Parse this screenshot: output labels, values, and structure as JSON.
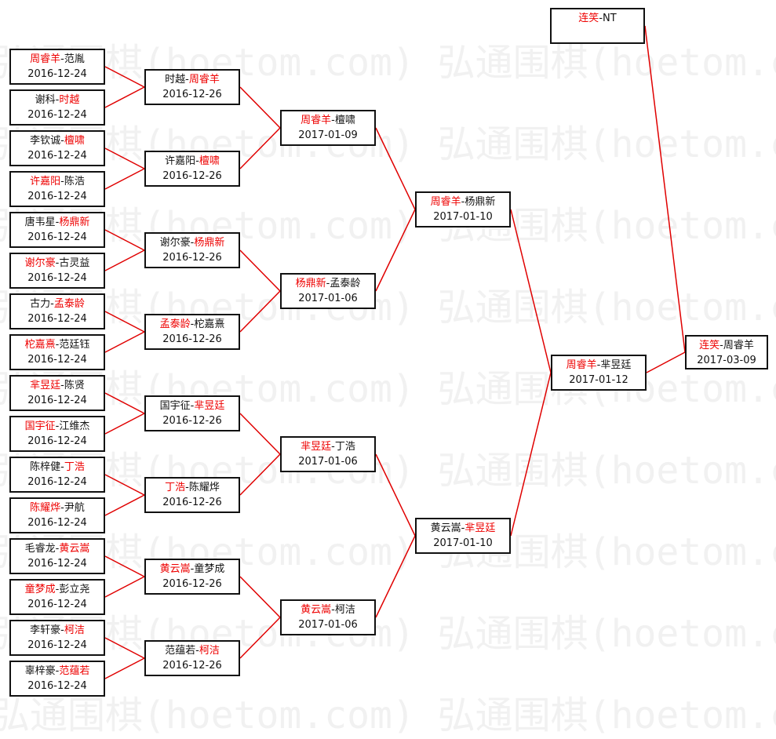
{
  "watermark": "弘通围棋(hoetom.com)",
  "colors": {
    "winner": "#e00000",
    "line": "#e00000",
    "border": "#111111"
  },
  "rounds": [
    [
      {
        "p1": "周睿羊",
        "p2": "范胤",
        "winner": 1,
        "date": "2016-12-24"
      },
      {
        "p1": "谢科",
        "p2": "时越",
        "winner": 2,
        "date": "2016-12-24"
      },
      {
        "p1": "李钦诚",
        "p2": "檀啸",
        "winner": 2,
        "date": "2016-12-24"
      },
      {
        "p1": "许嘉阳",
        "p2": "陈浩",
        "winner": 1,
        "date": "2016-12-24"
      },
      {
        "p1": "唐韦星",
        "p2": "杨鼎新",
        "winner": 2,
        "date": "2016-12-24"
      },
      {
        "p1": "谢尔豪",
        "p2": "古灵益",
        "winner": 1,
        "date": "2016-12-24"
      },
      {
        "p1": "古力",
        "p2": "孟泰龄",
        "winner": 2,
        "date": "2016-12-24"
      },
      {
        "p1": "柁嘉熹",
        "p2": "范廷钰",
        "winner": 1,
        "date": "2016-12-24"
      },
      {
        "p1": "芈昱廷",
        "p2": "陈贤",
        "winner": 1,
        "date": "2016-12-24"
      },
      {
        "p1": "国宇征",
        "p2": "江维杰",
        "winner": 1,
        "date": "2016-12-24"
      },
      {
        "p1": "陈梓健",
        "p2": "丁浩",
        "winner": 2,
        "date": "2016-12-24"
      },
      {
        "p1": "陈耀烨",
        "p2": "尹航",
        "winner": 1,
        "date": "2016-12-24"
      },
      {
        "p1": "毛睿龙",
        "p2": "黄云嵩",
        "winner": 2,
        "date": "2016-12-24"
      },
      {
        "p1": "童梦成",
        "p2": "彭立尧",
        "winner": 1,
        "date": "2016-12-24"
      },
      {
        "p1": "李轩豪",
        "p2": "柯洁",
        "winner": 2,
        "date": "2016-12-24"
      },
      {
        "p1": "辜梓豪",
        "p2": "范蕴若",
        "winner": 2,
        "date": "2016-12-24"
      }
    ],
    [
      {
        "p1": "时越",
        "p2": "周睿羊",
        "winner": 2,
        "date": "2016-12-26"
      },
      {
        "p1": "许嘉阳",
        "p2": "檀啸",
        "winner": 2,
        "date": "2016-12-26"
      },
      {
        "p1": "谢尔豪",
        "p2": "杨鼎新",
        "winner": 2,
        "date": "2016-12-26"
      },
      {
        "p1": "孟泰龄",
        "p2": "柁嘉熹",
        "winner": 1,
        "date": "2016-12-26"
      },
      {
        "p1": "国宇征",
        "p2": "芈昱廷",
        "winner": 2,
        "date": "2016-12-26"
      },
      {
        "p1": "丁浩",
        "p2": "陈耀烨",
        "winner": 1,
        "date": "2016-12-26"
      },
      {
        "p1": "黄云嵩",
        "p2": "童梦成",
        "winner": 1,
        "date": "2016-12-26"
      },
      {
        "p1": "范蕴若",
        "p2": "柯洁",
        "winner": 2,
        "date": "2016-12-26"
      }
    ],
    [
      {
        "p1": "周睿羊",
        "p2": "檀啸",
        "winner": 1,
        "date": "2017-01-09"
      },
      {
        "p1": "杨鼎新",
        "p2": "孟泰龄",
        "winner": 1,
        "date": "2017-01-06"
      },
      {
        "p1": "芈昱廷",
        "p2": "丁浩",
        "winner": 1,
        "date": "2017-01-06"
      },
      {
        "p1": "黄云嵩",
        "p2": "柯洁",
        "winner": 1,
        "date": "2017-01-06"
      }
    ],
    [
      {
        "p1": "周睿羊",
        "p2": "杨鼎新",
        "winner": 1,
        "date": "2017-01-10"
      },
      {
        "p1": "黄云嵩",
        "p2": "芈昱廷",
        "winner": 2,
        "date": "2017-01-10"
      }
    ],
    [
      {
        "p1": "周睿羊",
        "p2": "芈昱廷",
        "winner": 1,
        "date": "2017-01-12"
      }
    ]
  ],
  "seed": {
    "p1": "连笑",
    "p2": "NT",
    "winner": 1,
    "date": ""
  },
  "final": {
    "p1": "连笑",
    "p2": "周睿羊",
    "winner": 1,
    "date": "2017-03-09"
  }
}
